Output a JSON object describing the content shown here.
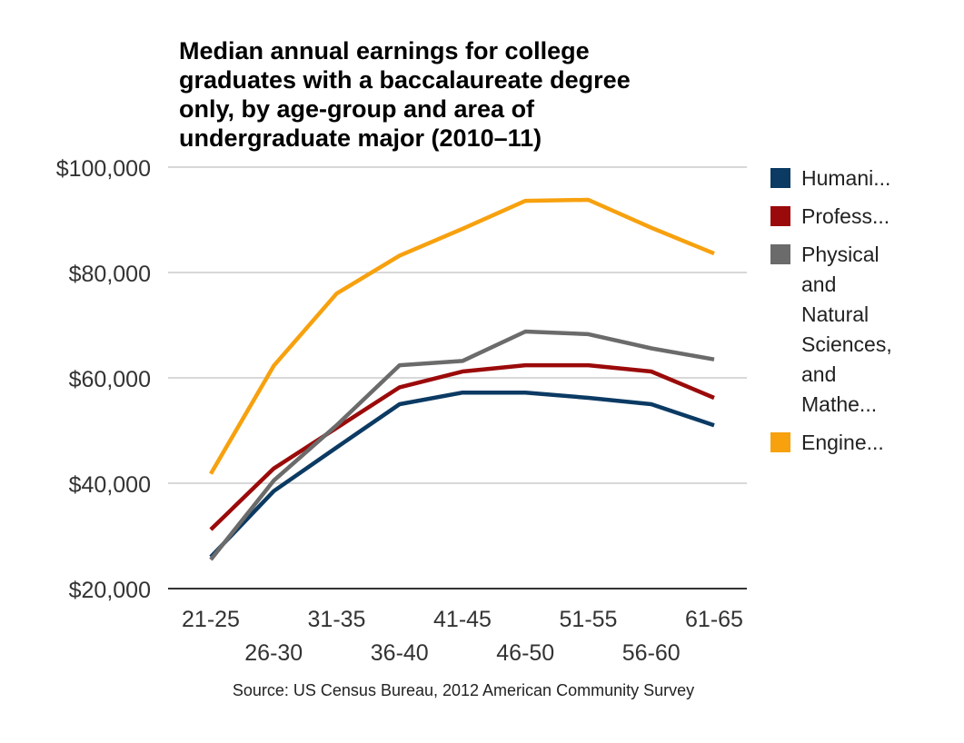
{
  "chart_data": {
    "type": "line",
    "title_lines": [
      "Median annual earnings for college",
      "graduates with a baccalaureate degree",
      "only, by age-group and area of",
      "undergraduate major (2010–11)"
    ],
    "categories": [
      "21-25",
      "26-30",
      "31-35",
      "36-40",
      "41-45",
      "46-50",
      "51-55",
      "56-60",
      "61-65"
    ],
    "ylim": [
      20000,
      100000
    ],
    "yticks": [
      20000,
      40000,
      60000,
      80000,
      100000
    ],
    "ytick_labels": [
      "$20,000",
      "$40,000",
      "$60,000",
      "$80,000",
      "$100,000"
    ],
    "series": [
      {
        "name": "Humani...",
        "legend_lines": [
          "Humani..."
        ],
        "color": "#0b3a63",
        "values": [
          26000,
          38500,
          46800,
          55000,
          57200,
          57200,
          56200,
          55000,
          51000
        ]
      },
      {
        "name": "Profess...",
        "legend_lines": [
          "Profess..."
        ],
        "color": "#9b0a0a",
        "values": [
          31200,
          42800,
          50500,
          58200,
          61200,
          62400,
          62400,
          61200,
          56200
        ]
      },
      {
        "name": "Physical and Natural Sciences, and Mathe...",
        "legend_lines": [
          "Physical",
          "and",
          "Natural",
          "Sciences,",
          "and",
          "Mathe..."
        ],
        "color": "#6b6b6b",
        "values": [
          25500,
          40500,
          51000,
          62400,
          63200,
          68800,
          68300,
          65600,
          63500
        ]
      },
      {
        "name": "Engine...",
        "legend_lines": [
          "Engine..."
        ],
        "color": "#f7a10f",
        "values": [
          41800,
          62300,
          76000,
          83200,
          88300,
          93600,
          93800,
          88500,
          83600
        ]
      }
    ],
    "legend_position": "right",
    "grid": true,
    "source": "Source: US Census Bureau, 2012 American Community Survey"
  }
}
